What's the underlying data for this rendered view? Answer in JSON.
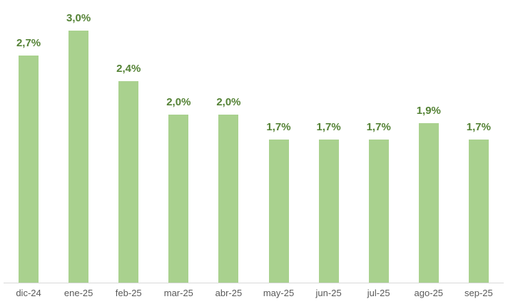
{
  "chart_data": {
    "type": "bar",
    "title": "",
    "xlabel": "",
    "ylabel": "",
    "categories": [
      "dic-24",
      "ene-25",
      "feb-25",
      "mar-25",
      "abr-25",
      "may-25",
      "jun-25",
      "jul-25",
      "ago-25",
      "sep-25"
    ],
    "values": [
      2.7,
      3.0,
      2.4,
      2.0,
      2.0,
      1.7,
      1.7,
      1.7,
      1.9,
      1.7
    ],
    "data_labels": [
      "2,7%",
      "3,0%",
      "2,4%",
      "2,0%",
      "2,0%",
      "1,7%",
      "1,7%",
      "1,7%",
      "1,9%",
      "1,7%"
    ],
    "ylim": [
      0,
      3.364
    ],
    "grid": false,
    "legend": false,
    "y_axis_visible": false,
    "colors": {
      "bar_fill": "#A9D18E",
      "data_label": "#548235",
      "axis_line": "#D9D9D9",
      "tick_label": "#595959"
    }
  }
}
